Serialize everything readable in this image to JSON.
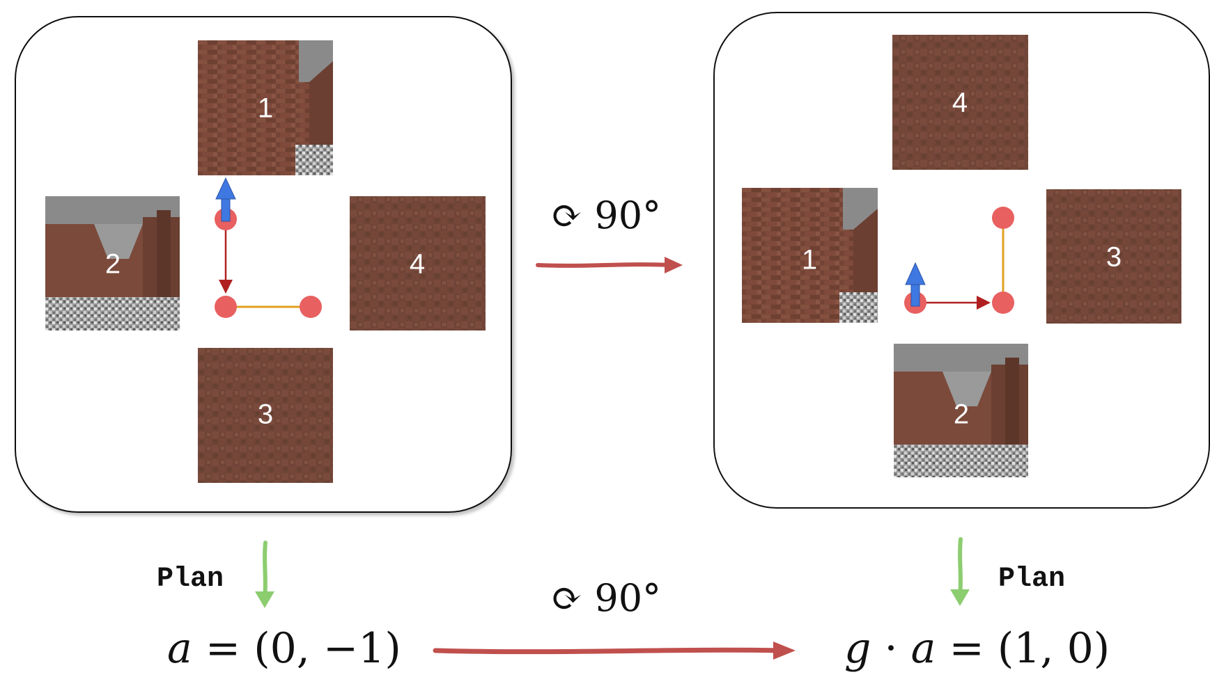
{
  "colors": {
    "brick": "#7e4b3c",
    "brick_dark": "#5f372c",
    "sky": "#8a8a8a",
    "dot": "#e86060",
    "red_arrow": "#b02020",
    "blue_arrow": "#3f78e0",
    "yellow_line": "#e0a020",
    "big_arrow": "#c0504d",
    "plan_arrow": "#8ccd70"
  },
  "left_panel": {
    "tiles": [
      {
        "label": "1",
        "texture": "brick-wall-corner"
      },
      {
        "label": "2",
        "texture": "corridor"
      },
      {
        "label": "4",
        "texture": "brick-plain"
      },
      {
        "label": "3",
        "texture": "brick-plain"
      }
    ]
  },
  "right_panel": {
    "tiles": [
      {
        "label": "4",
        "texture": "brick-plain"
      },
      {
        "label": "1",
        "texture": "brick-wall-corner"
      },
      {
        "label": "3",
        "texture": "brick-plain"
      },
      {
        "label": "2",
        "texture": "corridor"
      }
    ]
  },
  "top_rotation_label": "⟳ 90°",
  "bottom_rotation_label": "⟳ 90°",
  "rotation_symbol": "⟳",
  "rotation_value": "90°",
  "plan_left": "Plan",
  "plan_right": "Plan",
  "action_left": "a = (0, −1)",
  "action_right": "g · a = (1, 0)",
  "action_left_parts": {
    "var": "a",
    "rest": " = (0, −1)"
  },
  "action_right_parts": {
    "g": "g",
    "dot": " · ",
    "var": "a",
    "rest": " = (1, 0)"
  }
}
